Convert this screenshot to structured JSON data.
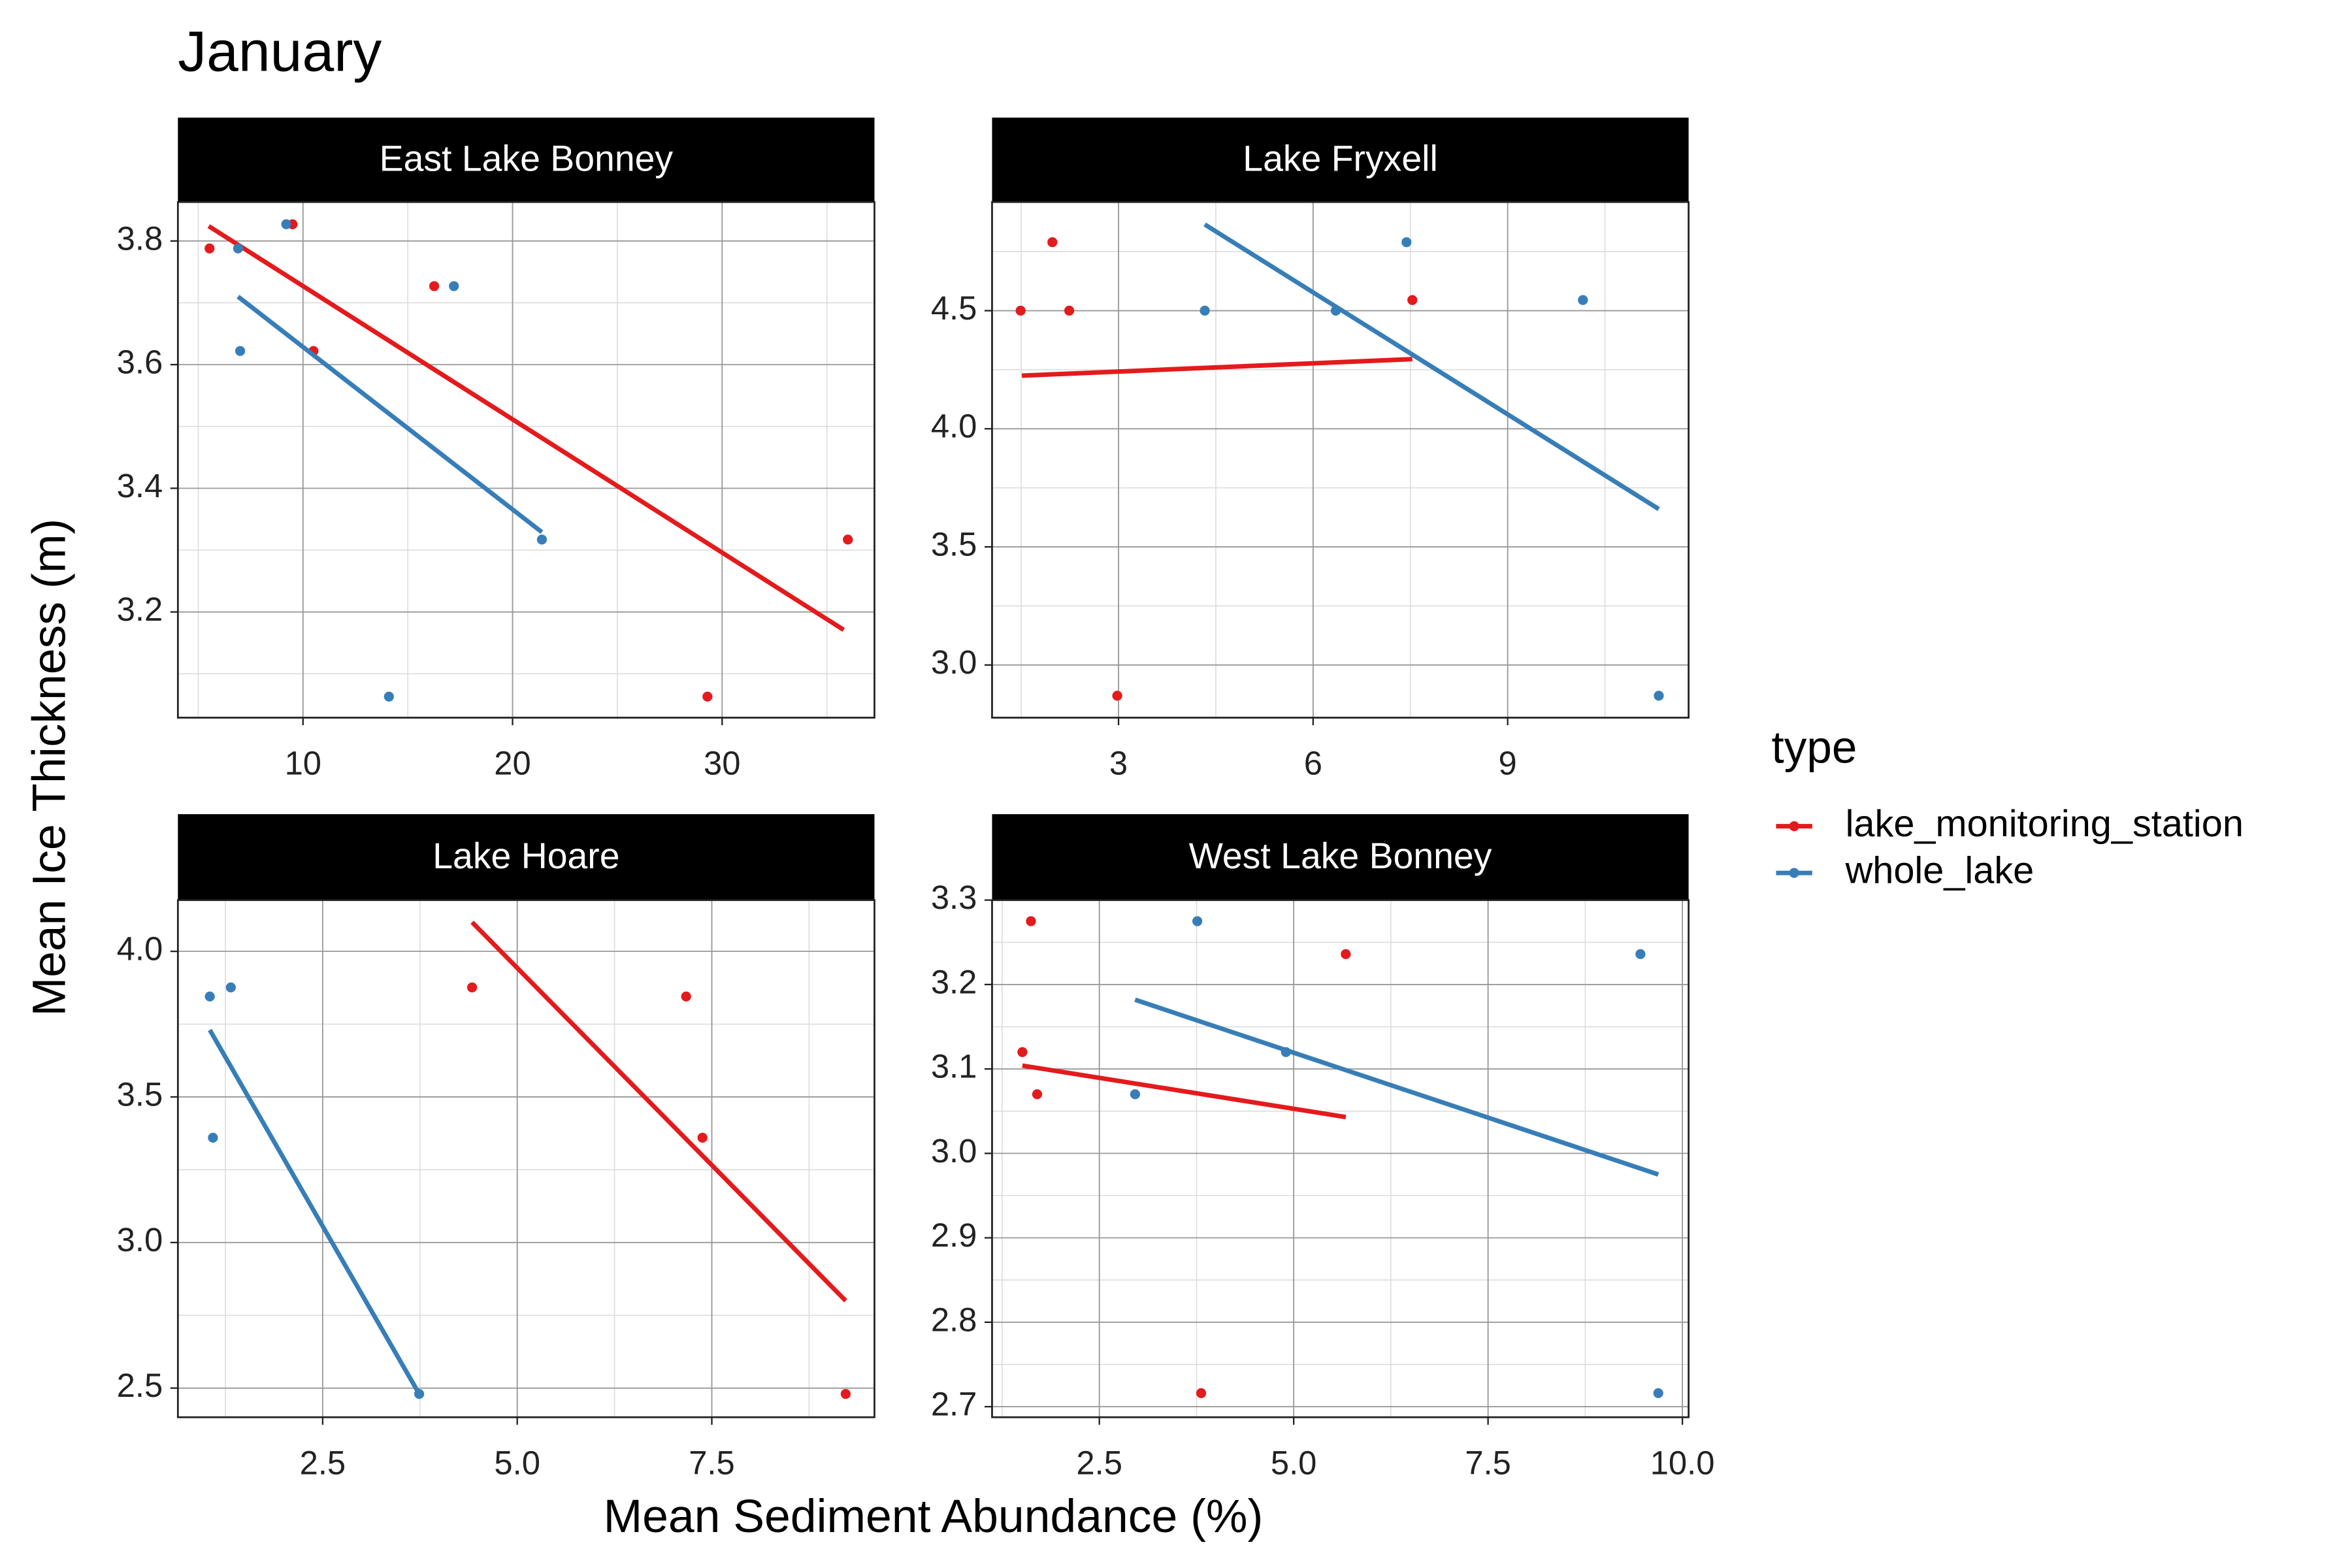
{
  "title": "January",
  "x_label": "Mean Sediment Abundance (%)",
  "y_label": "Mean Ice Thickness (m)",
  "legend_title": "type",
  "chart_data": [
    {
      "type": "scatter",
      "title": "East Lake Bonney",
      "xlim": [
        4.03,
        37.27
      ],
      "xticks": [
        10,
        20,
        30
      ],
      "ylim": [
        3.029,
        3.863
      ],
      "yticks": [
        3.2,
        3.4,
        3.6,
        3.8
      ],
      "grid": true,
      "series": [
        {
          "name": "lake_monitoring_station",
          "color": "#e41a1c",
          "x": [
            5.54,
            9.5,
            16.26,
            10.5,
            36.0,
            29.3
          ],
          "y": [
            3.788,
            3.827,
            3.727,
            3.622,
            3.317,
            3.063
          ],
          "trend": {
            "x": [
              5.5,
              35.8
            ],
            "y": [
              3.824,
              3.171
            ]
          }
        },
        {
          "name": "whole_lake",
          "color": "#377eb8",
          "x": [
            9.2,
            6.9,
            7.0,
            17.2,
            21.4,
            14.1
          ],
          "y": [
            3.827,
            3.788,
            3.622,
            3.727,
            3.317,
            3.063
          ],
          "trend": {
            "x": [
              6.9,
              21.4
            ],
            "y": [
              3.71,
              3.329
            ]
          }
        }
      ]
    },
    {
      "type": "scatter",
      "title": "Lake Fryxell",
      "xlim": [
        1.05,
        11.79
      ],
      "xticks": [
        3,
        6,
        9
      ],
      "ylim": [
        2.777,
        4.96
      ],
      "yticks": [
        {
          "value": 3,
          "label": "3.0"
        },
        3.5,
        {
          "value": 4,
          "label": "4.0"
        },
        4.5
      ],
      "grid": true,
      "series": [
        {
          "name": "lake_monitoring_station",
          "color": "#e41a1c",
          "x": [
            1.49,
            1.98,
            2.24,
            2.98,
            7.53
          ],
          "y": [
            4.5,
            4.79,
            4.5,
            2.87,
            4.545
          ],
          "trend": {
            "x": [
              1.51,
              7.53
            ],
            "y": [
              4.225,
              4.295
            ]
          }
        },
        {
          "name": "whole_lake",
          "color": "#377eb8",
          "x": [
            4.33,
            6.35,
            7.44,
            10.16,
            11.33
          ],
          "y": [
            4.5,
            4.5,
            4.79,
            4.545,
            2.87
          ],
          "trend": {
            "x": [
              4.33,
              11.33
            ],
            "y": [
              4.865,
              3.66
            ]
          }
        }
      ]
    },
    {
      "type": "scatter",
      "title": "Lake Hoare",
      "xlim": [
        0.64,
        9.59
      ],
      "xticks": [
        2.5,
        {
          "value": 5,
          "label": "5.0"
        },
        7.5
      ],
      "ylim": [
        2.4,
        4.176
      ],
      "yticks": [
        2.5,
        {
          "value": 3,
          "label": "3.0"
        },
        3.5,
        {
          "value": 4,
          "label": "4.0"
        }
      ],
      "grid": true,
      "series": [
        {
          "name": "lake_monitoring_station",
          "color": "#e41a1c",
          "x": [
            4.42,
            7.17,
            7.38,
            9.22
          ],
          "y": [
            3.876,
            3.845,
            3.36,
            2.48
          ],
          "trend": {
            "x": [
              4.42,
              9.22
            ],
            "y": [
              4.1,
              2.8
            ]
          }
        },
        {
          "name": "whole_lake",
          "color": "#377eb8",
          "x": [
            1.05,
            1.32,
            1.09,
            3.74
          ],
          "y": [
            3.845,
            3.876,
            3.36,
            2.48
          ],
          "trend": {
            "x": [
              1.05,
              3.74
            ],
            "y": [
              3.73,
              2.48
            ]
          }
        }
      ]
    },
    {
      "type": "scatter",
      "title": "West Lake Bonney",
      "xlim": [
        1.12,
        10.08
      ],
      "xticks": [
        2.5,
        {
          "value": 5,
          "label": "5.0"
        },
        7.5,
        {
          "value": 10,
          "label": "10.0"
        }
      ],
      "ylim": [
        2.6875,
        3.3
      ],
      "yticks": [
        2.7,
        2.8,
        2.9,
        {
          "value": 3,
          "label": "3.0"
        },
        3.1,
        3.2,
        3.3
      ],
      "grid": true,
      "series": [
        {
          "name": "lake_monitoring_station",
          "color": "#e41a1c",
          "x": [
            1.62,
            5.67,
            1.51,
            1.7,
            3.81
          ],
          "y": [
            3.275,
            3.236,
            3.12,
            3.07,
            2.716
          ],
          "trend": {
            "x": [
              1.51,
              5.67
            ],
            "y": [
              3.104,
              3.043
            ]
          }
        },
        {
          "name": "whole_lake",
          "color": "#377eb8",
          "x": [
            3.76,
            9.46,
            4.9,
            2.96,
            9.69
          ],
          "y": [
            3.275,
            3.236,
            3.12,
            3.07,
            2.716
          ],
          "trend": {
            "x": [
              2.96,
              9.69
            ],
            "y": [
              3.182,
              2.975
            ]
          }
        }
      ]
    }
  ]
}
